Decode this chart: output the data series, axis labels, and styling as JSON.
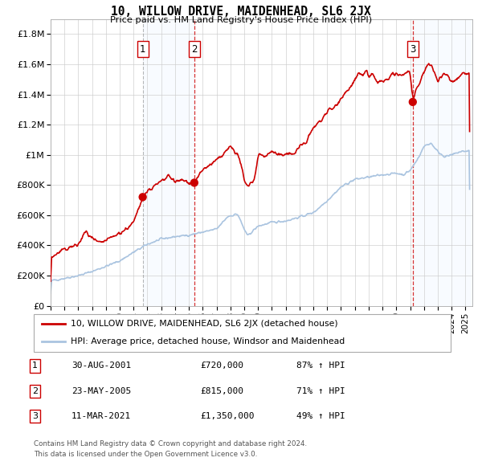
{
  "title": "10, WILLOW DRIVE, MAIDENHEAD, SL6 2JX",
  "subtitle": "Price paid vs. HM Land Registry's House Price Index (HPI)",
  "background_color": "#ffffff",
  "grid_color": "#cccccc",
  "hpi_line_color": "#aac4e0",
  "price_line_color": "#cc0000",
  "marker_color": "#cc0000",
  "shade_color": "#ddeeff",
  "vline1_color": "#888888",
  "vline2_color": "#cc0000",
  "sale1_year": 2001.66,
  "sale1_price": 720000,
  "sale2_year": 2005.39,
  "sale2_price": 815000,
  "sale3_year": 2021.19,
  "sale3_price": 1350000,
  "ylim": [
    0,
    1900000
  ],
  "xlim_start": 1995.0,
  "xlim_end": 2025.5,
  "legend_line1": "10, WILLOW DRIVE, MAIDENHEAD, SL6 2JX (detached house)",
  "legend_line2": "HPI: Average price, detached house, Windsor and Maidenhead",
  "table_rows": [
    [
      "1",
      "30-AUG-2001",
      "£720,000",
      "87% ↑ HPI"
    ],
    [
      "2",
      "23-MAY-2005",
      "£815,000",
      "71% ↑ HPI"
    ],
    [
      "3",
      "11-MAR-2021",
      "£1,350,000",
      "49% ↑ HPI"
    ]
  ],
  "footnote1": "Contains HM Land Registry data © Crown copyright and database right 2024.",
  "footnote2": "This data is licensed under the Open Government Licence v3.0.",
  "yticks": [
    0,
    200000,
    400000,
    600000,
    800000,
    1000000,
    1200000,
    1400000,
    1600000,
    1800000
  ],
  "ytick_labels": [
    "£0",
    "£200K",
    "£400K",
    "£600K",
    "£800K",
    "£1M",
    "£1.2M",
    "£1.4M",
    "£1.6M",
    "£1.8M"
  ],
  "hpi_anchors": [
    [
      1995.0,
      165000
    ],
    [
      1996,
      182000
    ],
    [
      1997,
      200000
    ],
    [
      1998,
      228000
    ],
    [
      1999,
      262000
    ],
    [
      2000,
      298000
    ],
    [
      2001,
      355000
    ],
    [
      2002,
      408000
    ],
    [
      2003,
      442000
    ],
    [
      2004,
      458000
    ],
    [
      2005,
      468000
    ],
    [
      2006,
      488000
    ],
    [
      2007,
      508000
    ],
    [
      2007.8,
      592000
    ],
    [
      2008.5,
      608000
    ],
    [
      2009.2,
      462000
    ],
    [
      2010,
      528000
    ],
    [
      2011,
      552000
    ],
    [
      2012,
      562000
    ],
    [
      2013,
      588000
    ],
    [
      2014,
      618000
    ],
    [
      2015,
      698000
    ],
    [
      2016,
      788000
    ],
    [
      2017,
      838000
    ],
    [
      2018,
      852000
    ],
    [
      2019,
      868000
    ],
    [
      2020,
      878000
    ],
    [
      2020.5,
      868000
    ],
    [
      2021,
      898000
    ],
    [
      2021.5,
      968000
    ],
    [
      2022,
      1058000
    ],
    [
      2022.5,
      1078000
    ],
    [
      2023,
      1018000
    ],
    [
      2023.5,
      988000
    ],
    [
      2024,
      998000
    ],
    [
      2024.5,
      1018000
    ],
    [
      2025.3,
      1028000
    ]
  ],
  "price_anchors": [
    [
      1995.0,
      320000
    ],
    [
      1995.5,
      345000
    ],
    [
      1996,
      375000
    ],
    [
      1997,
      405000
    ],
    [
      1997.5,
      492000
    ],
    [
      1998,
      442000
    ],
    [
      1998.5,
      412000
    ],
    [
      1999,
      432000
    ],
    [
      1999.5,
      458000
    ],
    [
      2000,
      482000
    ],
    [
      2000.5,
      512000
    ],
    [
      2001,
      552000
    ],
    [
      2001.5,
      682000
    ],
    [
      2001.66,
      720000
    ],
    [
      2002,
      762000
    ],
    [
      2002.5,
      792000
    ],
    [
      2003,
      822000
    ],
    [
      2003.3,
      842000
    ],
    [
      2003.5,
      858000
    ],
    [
      2003.8,
      842000
    ],
    [
      2004,
      818000
    ],
    [
      2004.5,
      832000
    ],
    [
      2005.0,
      818000
    ],
    [
      2005.39,
      815000
    ],
    [
      2005.5,
      832000
    ],
    [
      2006,
      902000
    ],
    [
      2007,
      962000
    ],
    [
      2007.5,
      1002000
    ],
    [
      2008,
      1058000
    ],
    [
      2008.2,
      1042000
    ],
    [
      2008.7,
      962000
    ],
    [
      2009,
      812000
    ],
    [
      2009.3,
      802000
    ],
    [
      2009.7,
      832000
    ],
    [
      2010,
      1002000
    ],
    [
      2010.5,
      992000
    ],
    [
      2011,
      1022000
    ],
    [
      2011.5,
      992000
    ],
    [
      2012,
      1012000
    ],
    [
      2012.5,
      1002000
    ],
    [
      2013,
      1052000
    ],
    [
      2013.5,
      1092000
    ],
    [
      2014,
      1182000
    ],
    [
      2014.5,
      1222000
    ],
    [
      2015,
      1292000
    ],
    [
      2015.5,
      1312000
    ],
    [
      2016,
      1382000
    ],
    [
      2016.5,
      1432000
    ],
    [
      2017,
      1492000
    ],
    [
      2017.3,
      1542000
    ],
    [
      2017.5,
      1522000
    ],
    [
      2017.8,
      1562000
    ],
    [
      2018,
      1512000
    ],
    [
      2018.3,
      1532000
    ],
    [
      2018.5,
      1482000
    ],
    [
      2018.8,
      1492000
    ],
    [
      2019,
      1482000
    ],
    [
      2019.3,
      1492000
    ],
    [
      2019.5,
      1512000
    ],
    [
      2019.7,
      1532000
    ],
    [
      2019.9,
      1522000
    ],
    [
      2020,
      1542000
    ],
    [
      2020.3,
      1522000
    ],
    [
      2020.5,
      1532000
    ],
    [
      2020.8,
      1552000
    ],
    [
      2021.0,
      1542000
    ],
    [
      2021.19,
      1350000
    ],
    [
      2021.3,
      1382000
    ],
    [
      2021.5,
      1442000
    ],
    [
      2021.8,
      1502000
    ],
    [
      2022,
      1562000
    ],
    [
      2022.2,
      1582000
    ],
    [
      2022.4,
      1602000
    ],
    [
      2022.5,
      1582000
    ],
    [
      2022.7,
      1562000
    ],
    [
      2022.9,
      1512000
    ],
    [
      2023,
      1492000
    ],
    [
      2023.3,
      1522000
    ],
    [
      2023.5,
      1542000
    ],
    [
      2023.8,
      1512000
    ],
    [
      2024,
      1482000
    ],
    [
      2024.3,
      1502000
    ],
    [
      2024.6,
      1522000
    ],
    [
      2024.9,
      1552000
    ],
    [
      2025.3,
      1532000
    ]
  ]
}
